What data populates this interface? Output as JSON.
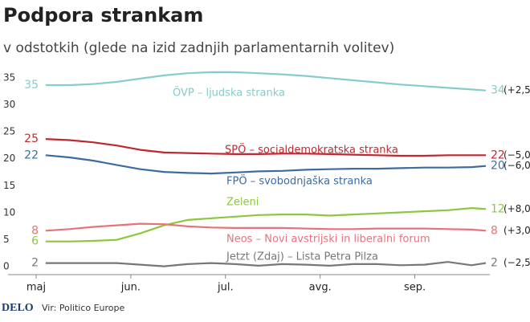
{
  "chart_data": {
    "type": "line",
    "title": "Podpora strankam",
    "subtitle": "v odstotkih (glede na izid zadnjih parlamentarnih volitev)",
    "source": "Vir: Politico Europe",
    "logo": "DELO",
    "x": [
      0.1,
      0.35,
      0.6,
      0.85,
      1.1,
      1.35,
      1.6,
      1.85,
      2.1,
      2.35,
      2.6,
      2.85,
      3.1,
      3.35,
      3.6,
      3.85,
      4.1,
      4.35,
      4.6,
      4.75
    ],
    "xlim": [
      0,
      4.75
    ],
    "xticks": [
      {
        "value": 0,
        "label": "maj"
      },
      {
        "value": 1,
        "label": "jun."
      },
      {
        "value": 2,
        "label": "jul."
      },
      {
        "value": 3,
        "label": "avg."
      },
      {
        "value": 4,
        "label": "sep."
      }
    ],
    "ylim": [
      0,
      35
    ],
    "yticks": [
      0,
      5,
      10,
      15,
      20,
      25,
      30,
      35
    ],
    "grid": false,
    "series": [
      {
        "name": "ÖVP – ljudska stranka",
        "color": "#86cccb",
        "change": "(+2,5)",
        "values": [
          35,
          35,
          35.2,
          35.6,
          36.2,
          36.8,
          37.2,
          37.4,
          37.4,
          37.2,
          37,
          36.7,
          36.3,
          35.9,
          35.5,
          35.1,
          34.8,
          34.5,
          34.2,
          34
        ]
      },
      {
        "name": "SPÖ – socialdemokratska stranka",
        "color": "#c0282e",
        "change": "(−5,0)",
        "values": [
          25,
          24.8,
          24.4,
          23.8,
          23,
          22.5,
          22.4,
          22.3,
          22.2,
          22.2,
          22.3,
          22.3,
          22.2,
          22.1,
          22,
          21.9,
          21.9,
          22,
          22,
          22
        ]
      },
      {
        "name": "FPÖ – svobodnjaška stranka",
        "color": "#3d6ba0",
        "change": "(−6,0)",
        "values": [
          22,
          21.6,
          21,
          20.2,
          19.4,
          18.9,
          18.7,
          18.6,
          18.8,
          19,
          19.1,
          19.3,
          19.4,
          19.5,
          19.5,
          19.6,
          19.7,
          19.7,
          19.8,
          20
        ]
      },
      {
        "name": "Zeleni",
        "color": "#8dc63f",
        "change": "(+8,0)",
        "values": [
          6,
          6,
          6.1,
          6.3,
          7.5,
          9,
          10,
          10.3,
          10.6,
          10.9,
          11,
          11,
          10.8,
          11,
          11.2,
          11.4,
          11.6,
          11.8,
          12.2,
          12
        ]
      },
      {
        "name": "Neos – Novi avstrijski in liberalni forum",
        "color": "#e8727b",
        "change": "(+3,0)",
        "values": [
          8,
          8.3,
          8.7,
          9,
          9.3,
          9.2,
          8.8,
          8.6,
          8.5,
          8.5,
          8.5,
          8.4,
          8.3,
          8.3,
          8.4,
          8.4,
          8.4,
          8.3,
          8.2,
          8
        ]
      },
      {
        "name": "Jetzt (Zdaj) – Lista Petra Pilza",
        "color": "#777777",
        "change": "(−2,5)",
        "values": [
          2,
          2,
          2,
          2,
          1.7,
          1.4,
          1.8,
          2,
          1.8,
          1.5,
          1.8,
          1.7,
          1.5,
          1.8,
          1.8,
          1.6,
          1.7,
          2.2,
          1.6,
          2
        ]
      }
    ]
  }
}
